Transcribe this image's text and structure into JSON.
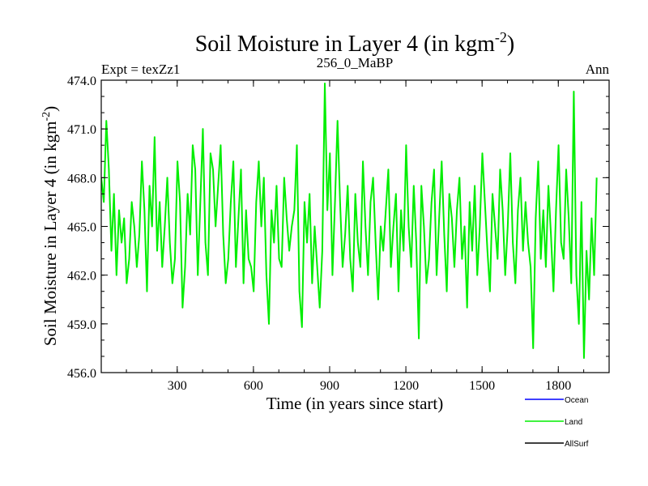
{
  "chart_data": {
    "type": "line",
    "title": "Soil Moisture in Layer 4 (in kgm",
    "title_superscript": "-2",
    "title_close": ")",
    "subtitle_left": "Expt = texZz1",
    "subtitle_center": "256_0_MaBP",
    "subtitle_right": "Ann",
    "xlabel": "Time (in years since start)",
    "ylabel": "Soil Moisture in Layer 4 (in kgm",
    "ylabel_superscript": "-2",
    "ylabel_close": ")",
    "xlim": [
      1,
      2000
    ],
    "ylim": [
      456.0,
      474.0
    ],
    "xticks": [
      300,
      600,
      900,
      1200,
      1500,
      1800
    ],
    "xtick_labels": [
      "300",
      "600",
      "900",
      "1200",
      "1500",
      "1800"
    ],
    "yticks": [
      456.0,
      459.0,
      462.0,
      465.0,
      468.0,
      471.0,
      474.0
    ],
    "ytick_labels": [
      "456.0",
      "459.0",
      "462.0",
      "465.0",
      "468.0",
      "471.0",
      "474.0"
    ],
    "series": [
      {
        "name": "Land",
        "color": "#00ee00",
        "x_start": 1,
        "x_step": 10,
        "values": [
          468.0,
          466.5,
          471.5,
          468.5,
          463.5,
          467.0,
          462.0,
          466.0,
          464.0,
          465.5,
          461.5,
          463.0,
          466.5,
          465.0,
          462.5,
          464.5,
          469.0,
          466.0,
          461.0,
          467.5,
          465.0,
          470.5,
          463.5,
          466.5,
          462.5,
          465.0,
          468.0,
          464.0,
          461.5,
          463.0,
          469.0,
          466.5,
          460.0,
          462.5,
          467.0,
          464.5,
          470.0,
          468.5,
          462.0,
          466.5,
          471.0,
          464.0,
          462.0,
          469.5,
          468.5,
          465.0,
          467.5,
          470.0,
          464.5,
          461.5,
          463.0,
          466.5,
          469.0,
          462.5,
          465.5,
          468.5,
          461.5,
          466.0,
          463.0,
          462.5,
          461.0,
          466.5,
          469.0,
          465.0,
          468.0,
          462.0,
          459.0,
          466.0,
          464.0,
          467.5,
          463.0,
          462.5,
          468.0,
          465.5,
          463.5,
          465.0,
          466.0,
          470.0,
          461.0,
          458.8,
          466.5,
          464.0,
          467.0,
          461.5,
          465.0,
          462.5,
          460.0,
          463.5,
          473.8,
          466.0,
          469.5,
          462.0,
          466.5,
          471.5,
          466.5,
          462.5,
          464.5,
          467.5,
          463.0,
          461.0,
          467.0,
          464.0,
          462.5,
          469.0,
          465.0,
          462.0,
          466.5,
          468.0,
          464.0,
          460.5,
          465.0,
          463.5,
          466.0,
          468.5,
          462.5,
          465.0,
          467.0,
          461.0,
          466.0,
          463.5,
          470.0,
          465.0,
          462.5,
          467.5,
          464.0,
          458.1,
          467.5,
          465.0,
          461.5,
          463.0,
          466.5,
          468.5,
          462.0,
          465.5,
          469.0,
          464.5,
          461.0,
          467.0,
          465.5,
          462.5,
          466.0,
          468.0,
          463.0,
          465.0,
          460.0,
          466.5,
          463.5,
          467.5,
          462.0,
          465.0,
          469.5,
          466.5,
          463.5,
          461.0,
          467.0,
          465.0,
          463.0,
          468.5,
          466.0,
          462.0,
          465.0,
          469.5,
          464.0,
          461.5,
          466.0,
          468.0,
          463.5,
          466.5,
          464.0,
          462.5,
          457.5,
          465.5,
          469.0,
          463.0,
          466.0,
          462.5,
          467.5,
          464.5,
          461.0,
          466.0,
          470.0,
          464.0,
          463.0,
          468.5,
          465.5,
          461.5,
          473.3,
          462.0,
          459.0,
          466.5,
          456.9,
          463.5,
          460.5,
          465.5,
          462.0,
          468.0
        ]
      }
    ],
    "legend": [
      {
        "name": "Ocean",
        "color": "#0000ff"
      },
      {
        "name": "Land",
        "color": "#00ee00"
      },
      {
        "name": "AllSurf",
        "color": "#000000"
      }
    ],
    "grid": false,
    "legend_position": "bottom-right"
  }
}
